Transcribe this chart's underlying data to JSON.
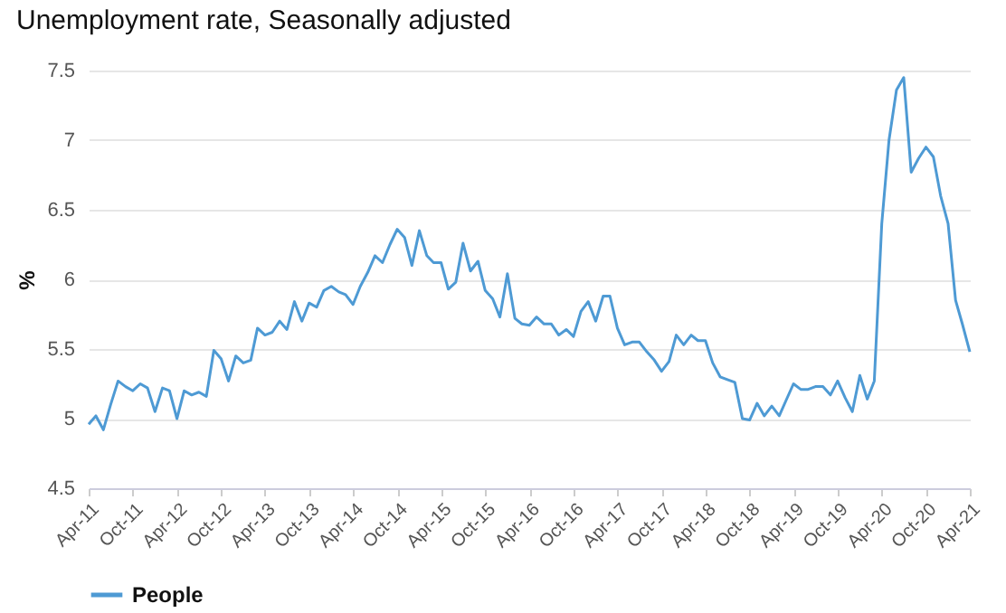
{
  "chart_data": {
    "type": "line",
    "title": "Unemployment rate, Seasonally adjusted",
    "ylabel": "%",
    "x": [
      "2011-04",
      "2011-05",
      "2011-06",
      "2011-07",
      "2011-08",
      "2011-09",
      "2011-10",
      "2011-11",
      "2011-12",
      "2012-01",
      "2012-02",
      "2012-03",
      "2012-04",
      "2012-05",
      "2012-06",
      "2012-07",
      "2012-08",
      "2012-09",
      "2012-10",
      "2012-11",
      "2012-12",
      "2013-01",
      "2013-02",
      "2013-03",
      "2013-04",
      "2013-05",
      "2013-06",
      "2013-07",
      "2013-08",
      "2013-09",
      "2013-10",
      "2013-11",
      "2013-12",
      "2014-01",
      "2014-02",
      "2014-03",
      "2014-04",
      "2014-05",
      "2014-06",
      "2014-07",
      "2014-08",
      "2014-09",
      "2014-10",
      "2014-11",
      "2014-12",
      "2015-01",
      "2015-02",
      "2015-03",
      "2015-04",
      "2015-05",
      "2015-06",
      "2015-07",
      "2015-08",
      "2015-09",
      "2015-10",
      "2015-11",
      "2015-12",
      "2016-01",
      "2016-02",
      "2016-03",
      "2016-04",
      "2016-05",
      "2016-06",
      "2016-07",
      "2016-08",
      "2016-09",
      "2016-10",
      "2016-11",
      "2016-12",
      "2017-01",
      "2017-02",
      "2017-03",
      "2017-04",
      "2017-05",
      "2017-06",
      "2017-07",
      "2017-08",
      "2017-09",
      "2017-10",
      "2017-11",
      "2017-12",
      "2018-01",
      "2018-02",
      "2018-03",
      "2018-04",
      "2018-05",
      "2018-06",
      "2018-07",
      "2018-08",
      "2018-09",
      "2018-10",
      "2018-11",
      "2018-12",
      "2019-01",
      "2019-02",
      "2019-03",
      "2019-04",
      "2019-05",
      "2019-06",
      "2019-07",
      "2019-08",
      "2019-09",
      "2019-10",
      "2019-11",
      "2019-12",
      "2020-01",
      "2020-02",
      "2020-03",
      "2020-04",
      "2020-05",
      "2020-06",
      "2020-07",
      "2020-08",
      "2020-09",
      "2020-10",
      "2020-11",
      "2020-12",
      "2021-01",
      "2021-02",
      "2021-03",
      "2021-04"
    ],
    "series": [
      {
        "name": "People",
        "color": "#4e9ad4",
        "values": [
          4.96,
          5.02,
          4.92,
          5.1,
          5.27,
          5.23,
          5.2,
          5.25,
          5.22,
          5.05,
          5.22,
          5.2,
          5.0,
          5.2,
          5.17,
          5.19,
          5.16,
          5.49,
          5.43,
          5.27,
          5.45,
          5.4,
          5.42,
          5.65,
          5.6,
          5.62,
          5.7,
          5.64,
          5.84,
          5.7,
          5.83,
          5.8,
          5.92,
          5.95,
          5.91,
          5.89,
          5.82,
          5.95,
          6.05,
          6.17,
          6.12,
          6.25,
          6.36,
          6.3,
          6.1,
          6.35,
          6.17,
          6.12,
          6.12,
          5.93,
          5.98,
          6.26,
          6.06,
          6.13,
          5.92,
          5.86,
          5.73,
          6.04,
          5.72,
          5.68,
          5.67,
          5.73,
          5.68,
          5.68,
          5.6,
          5.64,
          5.59,
          5.77,
          5.84,
          5.7,
          5.88,
          5.88,
          5.65,
          5.53,
          5.55,
          5.55,
          5.48,
          5.42,
          5.34,
          5.41,
          5.6,
          5.53,
          5.6,
          5.56,
          5.56,
          5.4,
          5.3,
          5.28,
          5.26,
          5.0,
          4.99,
          5.11,
          5.02,
          5.09,
          5.02,
          5.13,
          5.25,
          5.21,
          5.21,
          5.23,
          5.23,
          5.17,
          5.27,
          5.15,
          5.05,
          5.31,
          5.14,
          5.27,
          6.4,
          7.0,
          7.36,
          7.45,
          6.77,
          6.87,
          6.95,
          6.88,
          6.6,
          6.4,
          5.85,
          5.68,
          5.48
        ]
      }
    ],
    "xlim": [
      "2011-04",
      "2021-04"
    ],
    "xticks": [
      {
        "value": "2011-04",
        "label": "Apr-11"
      },
      {
        "value": "2011-10",
        "label": "Oct-11"
      },
      {
        "value": "2012-04",
        "label": "Apr-12"
      },
      {
        "value": "2012-10",
        "label": "Oct-12"
      },
      {
        "value": "2013-04",
        "label": "Apr-13"
      },
      {
        "value": "2013-10",
        "label": "Oct-13"
      },
      {
        "value": "2014-04",
        "label": "Apr-14"
      },
      {
        "value": "2014-10",
        "label": "Oct-14"
      },
      {
        "value": "2015-04",
        "label": "Apr-15"
      },
      {
        "value": "2015-10",
        "label": "Oct-15"
      },
      {
        "value": "2016-04",
        "label": "Apr-16"
      },
      {
        "value": "2016-10",
        "label": "Oct-16"
      },
      {
        "value": "2017-04",
        "label": "Apr-17"
      },
      {
        "value": "2017-10",
        "label": "Oct-17"
      },
      {
        "value": "2018-04",
        "label": "Apr-18"
      },
      {
        "value": "2018-10",
        "label": "Oct-18"
      },
      {
        "value": "2019-04",
        "label": "Apr-19"
      },
      {
        "value": "2019-10",
        "label": "Oct-19"
      },
      {
        "value": "2020-04",
        "label": "Apr-20"
      },
      {
        "value": "2020-10",
        "label": "Oct-20"
      },
      {
        "value": "2021-04",
        "label": "Apr-21"
      }
    ],
    "ylim": [
      4.5,
      7.5
    ],
    "yticks": [
      4.5,
      5,
      5.5,
      6,
      6.5,
      7,
      7.5
    ],
    "grid": "y",
    "legend": "bottom",
    "marker": "none",
    "line_style": "solid"
  }
}
